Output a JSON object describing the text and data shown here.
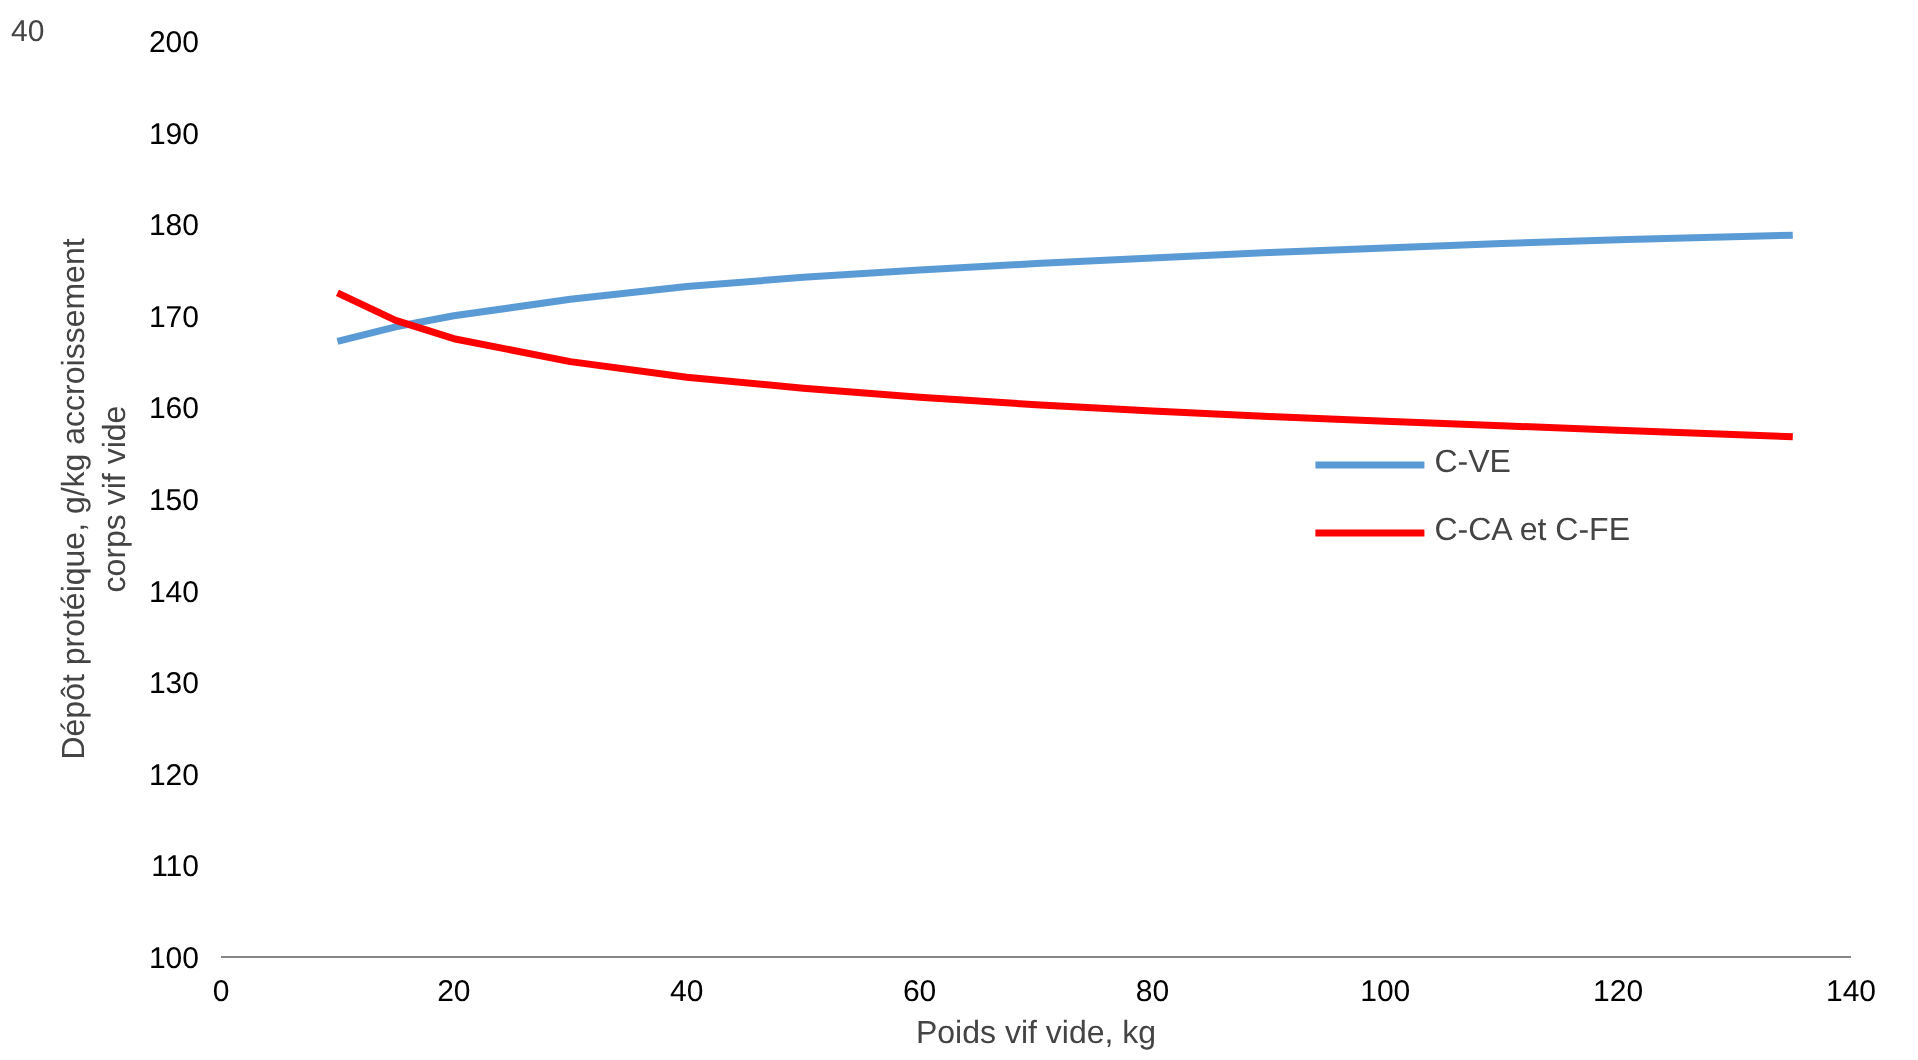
{
  "chart_data": {
    "type": "line",
    "xlabel": "Poids vif vide, kg",
    "ylabel": "Dépôt protéique, g/kg accroissement corps vif vide",
    "x": [
      10,
      15,
      20,
      30,
      40,
      50,
      60,
      70,
      80,
      90,
      100,
      110,
      120,
      135
    ],
    "series": [
      {
        "name": "C-VE",
        "color": "#5b9bd5",
        "values": [
          167.2,
          168.8,
          170,
          171.8,
          173.2,
          174.2,
          175,
          175.7,
          176.3,
          176.9,
          177.4,
          177.9,
          178.3,
          178.8
        ]
      },
      {
        "name": "C-CA et C-FE",
        "color": "#ff0000",
        "values": [
          172.5,
          169.5,
          167.5,
          165,
          163.3,
          162.1,
          161.1,
          160.3,
          159.6,
          159,
          158.5,
          158,
          157.5,
          156.8
        ]
      }
    ],
    "xlim": [
      0,
      140
    ],
    "xticks": [
      0,
      20,
      40,
      60,
      80,
      100,
      120,
      140
    ],
    "ylim": [
      100,
      200
    ],
    "yticks": [
      100,
      110,
      120,
      130,
      140,
      150,
      160,
      170,
      180,
      190,
      200
    ],
    "grid": false,
    "legend": "right",
    "marker": "none",
    "line_style": "solid",
    "annotations": [
      "40"
    ]
  }
}
